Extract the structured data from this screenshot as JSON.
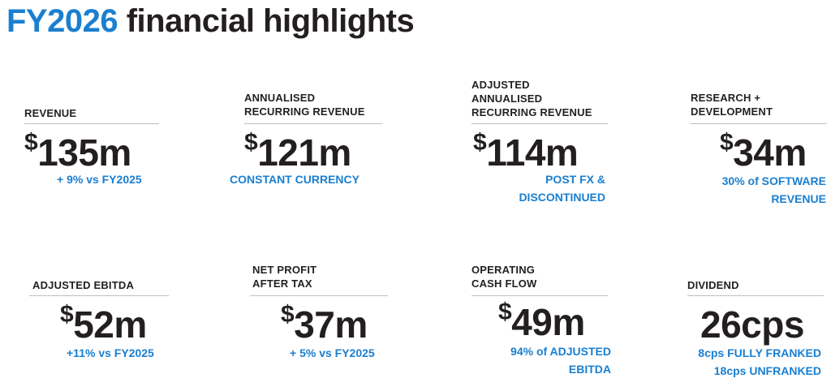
{
  "title": {
    "year": "FY2026",
    "rest": "financial highlights"
  },
  "metrics": {
    "revenue": {
      "label": [
        "REVENUE"
      ],
      "currency": "$",
      "value": "135m",
      "notes": [
        "+ 9% vs FY2025"
      ]
    },
    "arr": {
      "label": [
        "ANNUALISED",
        "RECURRING REVENUE"
      ],
      "currency": "$",
      "value": "121m",
      "notes": [
        "CONSTANT CURRENCY"
      ]
    },
    "adj_arr": {
      "label": [
        "ADJUSTED",
        "ANNUALISED",
        "RECURRING REVENUE"
      ],
      "currency": "$",
      "value": "114m",
      "notes": [
        "POST FX &",
        "DISCONTINUED"
      ]
    },
    "rnd": {
      "label": [
        "RESEARCH +",
        "DEVELOPMENT"
      ],
      "currency": "$",
      "value": "34m",
      "notes": [
        "30% of SOFTWARE",
        "REVENUE"
      ]
    },
    "ebitda": {
      "label": [
        "ADJUSTED EBITDA"
      ],
      "currency": "$",
      "value": "52m",
      "notes": [
        "+11% vs FY2025"
      ]
    },
    "npat": {
      "label": [
        "NET PROFIT",
        "AFTER TAX"
      ],
      "currency": "$",
      "value": "37m",
      "notes": [
        "+ 5% vs FY2025"
      ]
    },
    "ocf": {
      "label": [
        "OPERATING",
        "CASH FLOW"
      ],
      "currency": "$",
      "value": "49m",
      "notes": [
        "94% of ADJUSTED",
        "EBITDA"
      ]
    },
    "dividend": {
      "label": [
        "DIVIDEND"
      ],
      "currency": "",
      "value": "26cps",
      "notes": [
        "8cps FULLY FRANKED",
        "18cps UNFRANKED"
      ]
    }
  },
  "colors": {
    "accent": "#1a7fd0",
    "text": "#231f20",
    "rule": "#bfbfbf"
  }
}
